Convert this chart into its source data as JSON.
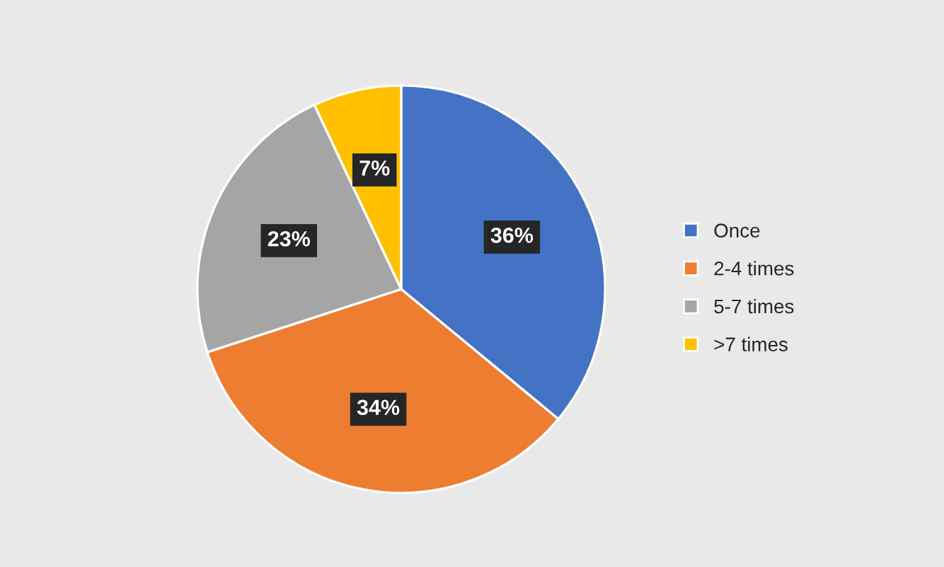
{
  "chart_data": {
    "type": "pie",
    "categories": [
      "Once",
      "2-4 times",
      "5-7 times",
      ">7 times"
    ],
    "values": [
      36,
      34,
      23,
      7
    ],
    "colors": [
      "#4472c4",
      "#ed7d31",
      "#a5a5a5",
      "#ffc000"
    ],
    "value_labels": [
      "36%",
      "34%",
      "23%",
      "7%"
    ],
    "legend": "right"
  }
}
